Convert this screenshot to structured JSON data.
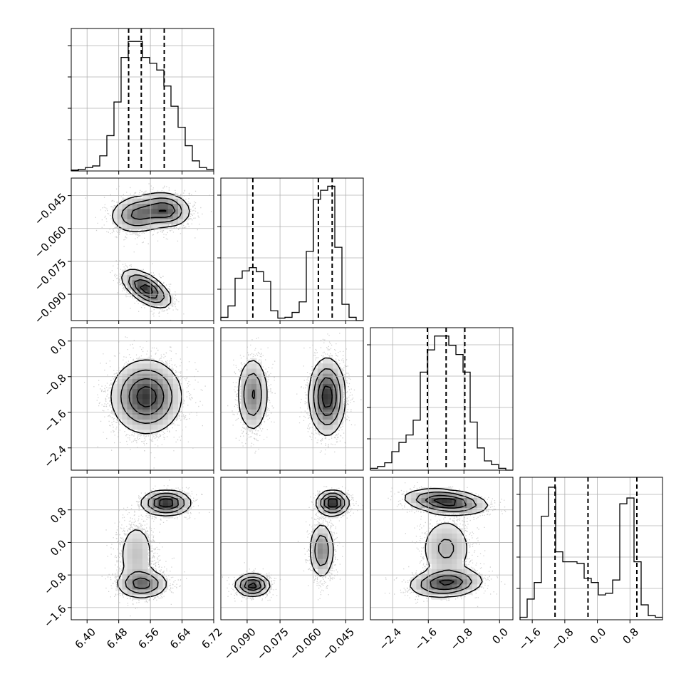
{
  "chart_data": {
    "type": "corner",
    "parameters": [
      {
        "range": [
          6.36,
          6.72
        ],
        "ticks": [
          6.4,
          6.48,
          6.56,
          6.64,
          6.72
        ],
        "tick_labels": [
          "6.40",
          "6.48",
          "6.56",
          "6.64",
          "6.72"
        ]
      },
      {
        "range": [
          -0.102,
          -0.037
        ],
        "ticks": [
          -0.09,
          -0.075,
          -0.06,
          -0.045
        ],
        "tick_labels": [
          "−0.090",
          "−0.075",
          "−0.060",
          "−0.045"
        ]
      },
      {
        "range": [
          -2.9,
          0.3
        ],
        "ticks": [
          -2.4,
          -1.6,
          -0.8,
          0.0
        ],
        "tick_labels": [
          "−2.4",
          "−1.6",
          "−0.8",
          "0.0"
        ]
      },
      {
        "range": [
          -1.9,
          1.6
        ],
        "ticks": [
          -1.6,
          -0.8,
          0.0,
          0.8
        ],
        "tick_labels": [
          "−1.6",
          "−0.8",
          "0.0",
          "0.8"
        ]
      }
    ],
    "histograms": [
      {
        "parameter": 0,
        "bin_edges_range": [
          6.36,
          6.72
        ],
        "counts": [
          1,
          2,
          4,
          6,
          18,
          42,
          82,
          135,
          154,
          154,
          135,
          128,
          120,
          101,
          77,
          52,
          30,
          12,
          4,
          2
        ],
        "quantiles": [
          6.505,
          6.537,
          6.595
        ]
      },
      {
        "parameter": 1,
        "bin_edges_range": [
          -0.102,
          -0.037
        ],
        "counts": [
          4,
          18,
          52,
          61,
          65,
          60,
          48,
          12,
          3,
          4,
          10,
          23,
          85,
          149,
          160,
          165,
          90,
          20,
          4,
          0
        ],
        "quantiles": [
          -0.0874,
          -0.0575,
          -0.0512
        ],
        "ymax": 175
      },
      {
        "parameter": 2,
        "bin_edges_range": [
          -2.9,
          0.3
        ],
        "counts": [
          2,
          4,
          8,
          20,
          30,
          38,
          54,
          106,
          130,
          145,
          145,
          135,
          125,
          106,
          52,
          24,
          10,
          6,
          2,
          0
        ],
        "quantiles": [
          -1.62,
          -1.2,
          -0.78
        ],
        "ymax": 154
      },
      {
        "parameter": 3,
        "bin_edges_range": [
          -1.9,
          1.6
        ],
        "counts": [
          3,
          25,
          45,
          125,
          160,
          82,
          70,
          70,
          68,
          50,
          45,
          30,
          32,
          48,
          140,
          147,
          70,
          18,
          5,
          3
        ],
        "quantiles": [
          -1.04,
          -0.23,
          0.97
        ],
        "ymax": 172
      }
    ],
    "pairs": [
      {
        "x_param": 0,
        "y_param": 1,
        "clusters": [
          {
            "cx": 6.53,
            "cy": -0.0535,
            "sx": 0.035,
            "sy": 0.0042,
            "rho": 0.1,
            "w": 0.35
          },
          {
            "cx": 6.6,
            "cy": -0.0515,
            "sx": 0.03,
            "sy": 0.0038,
            "rho": -0.1,
            "w": 0.3
          },
          {
            "cx": 6.55,
            "cy": -0.0875,
            "sx": 0.03,
            "sy": 0.0042,
            "rho": -0.6,
            "w": 0.35
          }
        ]
      },
      {
        "x_param": 0,
        "y_param": 2,
        "clusters": [
          {
            "cx": 6.55,
            "cy": -1.25,
            "sx": 0.043,
            "sy": 0.4,
            "rho": 0.0,
            "w": 1.0
          }
        ]
      },
      {
        "x_param": 1,
        "y_param": 2,
        "clusters": [
          {
            "cx": -0.0875,
            "cy": -1.2,
            "sx": 0.0035,
            "sy": 0.42,
            "rho": 0.0,
            "w": 0.35
          },
          {
            "cx": -0.0535,
            "cy": -1.25,
            "sx": 0.004,
            "sy": 0.42,
            "rho": 0.0,
            "w": 0.65
          }
        ]
      },
      {
        "x_param": 0,
        "y_param": 3,
        "clusters": [
          {
            "cx": 6.6,
            "cy": 0.97,
            "sx": 0.03,
            "sy": 0.15,
            "rho": 0.0,
            "w": 0.4
          },
          {
            "cx": 6.54,
            "cy": -1.02,
            "sx": 0.032,
            "sy": 0.17,
            "rho": 0.0,
            "w": 0.32
          },
          {
            "cx": 6.525,
            "cy": -0.3,
            "sx": 0.025,
            "sy": 0.45,
            "rho": 0.0,
            "w": 0.28
          }
        ]
      },
      {
        "x_param": 1,
        "y_param": 3,
        "clusters": [
          {
            "cx": -0.051,
            "cy": 0.97,
            "sx": 0.0035,
            "sy": 0.15,
            "rho": 0.0,
            "w": 0.35
          },
          {
            "cx": -0.0875,
            "cy": -1.05,
            "sx": 0.0038,
            "sy": 0.13,
            "rho": 0.0,
            "w": 0.3
          },
          {
            "cx": -0.056,
            "cy": -0.2,
            "sx": 0.0028,
            "sy": 0.35,
            "rho": 0.0,
            "w": 0.35
          }
        ]
      },
      {
        "x_param": 2,
        "y_param": 3,
        "clusters": [
          {
            "cx": -1.2,
            "cy": 1.0,
            "sx": 0.45,
            "sy": 0.15,
            "rho": -0.3,
            "w": 0.38
          },
          {
            "cx": -1.2,
            "cy": -1.0,
            "sx": 0.4,
            "sy": 0.17,
            "rho": 0.15,
            "w": 0.35
          },
          {
            "cx": -1.2,
            "cy": -0.15,
            "sx": 0.3,
            "sy": 0.4,
            "rho": 0.0,
            "w": 0.27
          }
        ]
      }
    ],
    "grid": true,
    "quantile_style": "dashed"
  }
}
